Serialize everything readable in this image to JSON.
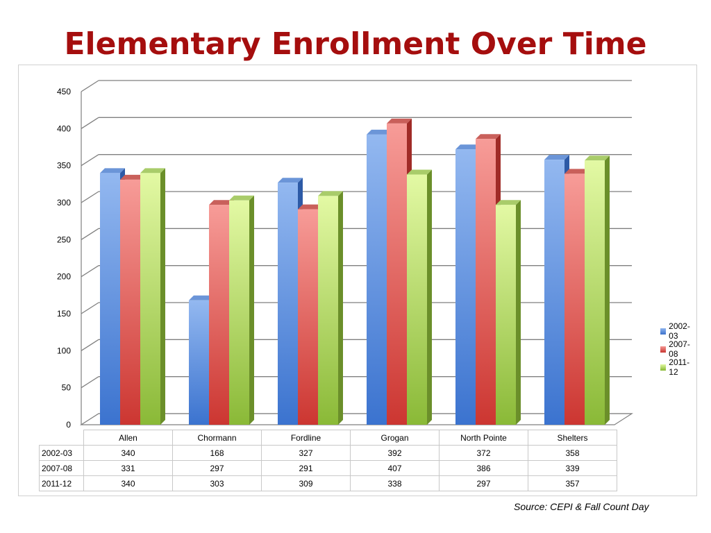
{
  "title": "Elementary Enrollment Over Time",
  "source_text": "Source:  CEPI & Fall Count Day",
  "colors": {
    "title": "#A50E0E",
    "series": [
      "#4A7FD0",
      "#D9403A",
      "#96C83C"
    ]
  },
  "chart_data": {
    "type": "bar",
    "categories": [
      "Allen",
      "Chormann",
      "Fordline",
      "Grogan",
      "North Pointe",
      "Shelters"
    ],
    "series": [
      {
        "name": "2002-03",
        "values": [
          340,
          168,
          327,
          392,
          372,
          358
        ]
      },
      {
        "name": "2007-08",
        "values": [
          331,
          297,
          291,
          407,
          386,
          339
        ]
      },
      {
        "name": "2011-12",
        "values": [
          340,
          303,
          309,
          338,
          297,
          357
        ]
      }
    ],
    "ylim": [
      0,
      450
    ],
    "yticks": [
      0,
      50,
      100,
      150,
      200,
      250,
      300,
      350,
      400,
      450
    ],
    "grid": true,
    "legend": "right",
    "data_table": true
  },
  "legend_items": [
    {
      "label": "2002-03"
    },
    {
      "label": "2007-08"
    },
    {
      "label": "2011-12"
    }
  ],
  "table": {
    "columns": [
      "Allen",
      "Chormann",
      "Fordline",
      "Grogan",
      "North Pointe",
      "Shelters"
    ],
    "rows": [
      {
        "label": "2002-03",
        "cells": [
          "340",
          "168",
          "327",
          "392",
          "372",
          "358"
        ]
      },
      {
        "label": "2007-08",
        "cells": [
          "331",
          "297",
          "291",
          "407",
          "386",
          "339"
        ]
      },
      {
        "label": "2011-12",
        "cells": [
          "340",
          "303",
          "309",
          "338",
          "297",
          "357"
        ]
      }
    ]
  }
}
